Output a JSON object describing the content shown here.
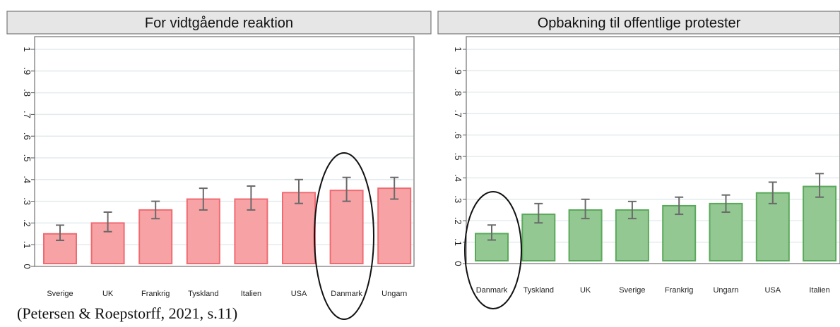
{
  "caption": "(Petersen & Roepstorff, 2021, s.11)",
  "colors": {
    "panel_header_bg": "#e6e6e6",
    "grid": "#e3ebee",
    "left_bar_fill": "#f7a3a6",
    "left_bar_stroke": "#ef6b72",
    "right_bar_fill": "#93c892",
    "right_bar_stroke": "#5aa95b",
    "error_bar": "#6a6a6a",
    "ellipse": "#111111"
  },
  "chart_data": [
    {
      "type": "bar",
      "title": "For vidtgående reaktion",
      "categories": [
        "Sverige",
        "UK",
        "Frankrig",
        "Tyskland",
        "Italien",
        "USA",
        "Danmark",
        "Ungarn"
      ],
      "values": [
        0.15,
        0.2,
        0.26,
        0.31,
        0.31,
        0.34,
        0.35,
        0.36
      ],
      "ci_low": [
        0.12,
        0.16,
        0.22,
        0.26,
        0.26,
        0.29,
        0.3,
        0.31
      ],
      "ci_high": [
        0.19,
        0.25,
        0.3,
        0.36,
        0.37,
        0.4,
        0.41,
        0.41
      ],
      "yticks": [
        "0",
        ".1",
        ".2",
        ".3",
        ".4",
        ".5",
        ".6",
        ".7",
        ".8",
        ".9",
        "1"
      ],
      "ylim": [
        0,
        1
      ],
      "grid": true,
      "highlighted_category": "Danmark",
      "color": "#f7a3a6"
    },
    {
      "type": "bar",
      "title": "Opbakning til offentlige protester",
      "categories": [
        "Danmark",
        "Tyskland",
        "UK",
        "Sverige",
        "Frankrig",
        "Ungarn",
        "USA",
        "Italien"
      ],
      "values": [
        0.14,
        0.23,
        0.25,
        0.25,
        0.27,
        0.28,
        0.33,
        0.36
      ],
      "ci_low": [
        0.11,
        0.19,
        0.21,
        0.21,
        0.23,
        0.24,
        0.28,
        0.31
      ],
      "ci_high": [
        0.18,
        0.28,
        0.3,
        0.29,
        0.31,
        0.32,
        0.38,
        0.42
      ],
      "yticks": [
        "0",
        ".1",
        ".2",
        ".3",
        ".4",
        ".5",
        ".6",
        ".7",
        ".8",
        ".9",
        "1"
      ],
      "ylim": [
        0,
        1
      ],
      "grid": true,
      "highlighted_category": "Danmark",
      "color": "#93c892"
    }
  ]
}
